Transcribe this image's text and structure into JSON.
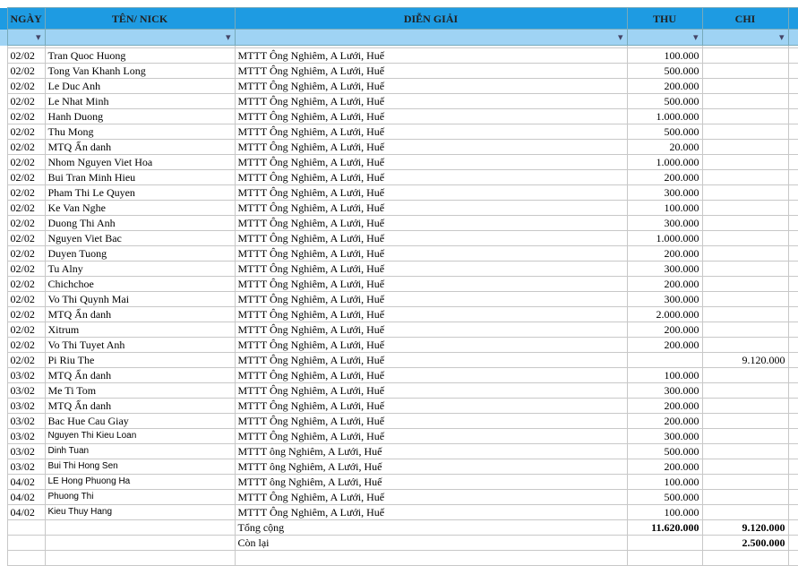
{
  "table": {
    "header": [
      "NGÀY",
      "TÊN/ NICK",
      "DIỄN GIẢI",
      "THU",
      "CHI"
    ],
    "rows": [
      [
        "02/02",
        "Tran Quoc Huong",
        "MTTT Ông Nghiêm, A Lưới, Huế",
        "100.000",
        null
      ],
      [
        "02/02",
        "Tong Van Khanh Long",
        "MTTT Ông Nghiêm, A Lưới, Huế",
        "500.000",
        null
      ],
      [
        "02/02",
        "Le Duc Anh",
        "MTTT Ông Nghiêm, A Lưới, Huế",
        "200.000",
        null
      ],
      [
        "02/02",
        "Le Nhat Minh",
        "MTTT Ông Nghiêm, A Lưới, Huế",
        "500.000",
        null
      ],
      [
        "02/02",
        "Hanh Duong",
        "MTTT Ông Nghiêm, A Lưới, Huế",
        "1.000.000",
        null
      ],
      [
        "02/02",
        "Thu Mong",
        "MTTT Ông Nghiêm, A Lưới, Huế",
        "500.000",
        null
      ],
      [
        "02/02",
        "MTQ Ẩn danh",
        "MTTT Ông Nghiêm, A Lưới, Huế",
        "20.000",
        null
      ],
      [
        "02/02",
        "Nhom Nguyen Viet Hoa",
        "MTTT Ông Nghiêm, A Lưới, Huế",
        "1.000.000",
        null
      ],
      [
        "02/02",
        "Bui Tran Minh Hieu",
        "MTTT Ông Nghiêm, A Lưới, Huế",
        "200.000",
        null
      ],
      [
        "02/02",
        "Pham Thi Le Quyen",
        "MTTT Ông Nghiêm, A Lưới, Huế",
        "300.000",
        null
      ],
      [
        "02/02",
        "Ke Van Nghe",
        "MTTT Ông Nghiêm, A Lưới, Huế",
        "100.000",
        null
      ],
      [
        "02/02",
        "Duong Thi Anh",
        "MTTT Ông Nghiêm, A Lưới, Huế",
        "300.000",
        null
      ],
      [
        "02/02",
        "Nguyen Viet Bac",
        "MTTT Ông Nghiêm, A Lưới, Huế",
        "1.000.000",
        null
      ],
      [
        "02/02",
        "Duyen Tuong",
        "MTTT Ông Nghiêm, A Lưới, Huế",
        "200.000",
        null
      ],
      [
        "02/02",
        "Tu Alny",
        "MTTT Ông Nghiêm, A Lưới, Huế",
        "300.000",
        null
      ],
      [
        "02/02",
        "Chichchoe",
        "MTTT Ông Nghiêm, A Lưới, Huế",
        "200.000",
        null
      ],
      [
        "02/02",
        "Vo Thi Quynh Mai",
        "MTTT Ông Nghiêm, A Lưới, Huế",
        "300.000",
        null
      ],
      [
        "02/02",
        "MTQ Ẩn danh",
        "MTTT Ông Nghiêm, A Lưới, Huế",
        "2.000.000",
        null
      ],
      [
        "02/02",
        "Xitrum",
        "MTTT Ông Nghiêm, A Lưới, Huế",
        "200.000",
        null
      ],
      [
        "02/02",
        "Vo Thi Tuyet Anh",
        "MTTT Ông Nghiêm, A Lưới, Huế",
        "200.000",
        null
      ],
      [
        "02/02",
        "Pi Riu The",
        "MTTT Ông Nghiêm, A Lưới, Huế",
        null,
        "9.120.000"
      ],
      [
        "03/02",
        "MTQ Ẩn danh",
        "MTTT Ông Nghiêm, A Lưới, Huế",
        "100.000",
        null
      ],
      [
        "03/02",
        "Me Ti Tom",
        "MTTT Ông Nghiêm, A Lưới, Huế",
        "300.000",
        null
      ],
      [
        "03/02",
        "MTQ Ẩn danh",
        "MTTT Ông Nghiêm, A Lưới, Huế",
        "200.000",
        null
      ],
      [
        "03/02",
        "Bac Hue Cau Giay",
        "MTTT Ông Nghiêm, A Lưới, Huế",
        "200.000",
        null
      ],
      [
        "03/02",
        "Nguyen Thi Kieu Loan",
        "MTTT Ông Nghiêm, A Lưới, Huế",
        "300.000",
        null
      ],
      [
        "03/02",
        "Dinh Tuan",
        "MTTT ông Nghiêm, A Lưới, Huế",
        "500.000",
        null
      ],
      [
        "03/02",
        "Bui Thi Hong Sen",
        "MTTT ông Nghiêm, A Lưới, Huế",
        "200.000",
        null
      ],
      [
        "04/02",
        "LE Hong Phuong Ha",
        "MTTT ông Nghiêm, A Lưới, Huế",
        "100.000",
        null
      ],
      [
        "04/02",
        "Phuong Thi",
        "MTTT Ông Nghiêm, A Lưới, Huế",
        "500.000",
        null
      ],
      [
        "04/02",
        "Kieu Thuy Hang",
        "MTTT Ông Nghiêm, A Lưới, Huế",
        "100.000",
        null
      ]
    ],
    "total": {
      "label": "Tổng cộng",
      "thu": "11.620.000",
      "chi": "9.120.000"
    },
    "remaining": {
      "label": "Còn lại",
      "chi": "2.500.000"
    }
  }
}
